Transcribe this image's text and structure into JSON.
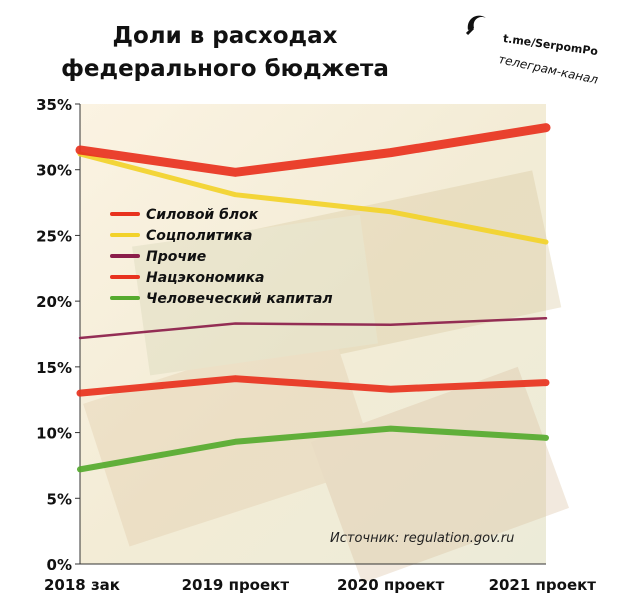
{
  "title_lines": [
    "Доли в расходах",
    "федерального бюджета"
  ],
  "brand": {
    "handle": "t.me/SerpomPo",
    "subtitle": "телеграм-канал"
  },
  "source_note": "Источник: regulation.gov.ru",
  "chart_data": {
    "type": "line",
    "categories": [
      "2018 зак",
      "2019 проект",
      "2020 проект",
      "2021 проект"
    ],
    "ylim": [
      0,
      35
    ],
    "yticks": [
      "0%",
      "5%",
      "10%",
      "15%",
      "20%",
      "25%",
      "30%",
      "35%"
    ],
    "ytick_values": [
      0,
      5,
      10,
      15,
      20,
      25,
      30,
      35
    ],
    "grid": false,
    "legend_position": "upper-left",
    "series": [
      {
        "name": "Силовой блок",
        "color": "#e8321e",
        "values": [
          13.0,
          14.1,
          13.3,
          13.8
        ],
        "width": 7
      },
      {
        "name": "Соцполитика",
        "color": "#f2d22a",
        "values": [
          31.2,
          28.1,
          26.8,
          24.5
        ],
        "width": 5
      },
      {
        "name": "Прочие",
        "color": "#8b1d4a",
        "values": [
          17.2,
          18.3,
          18.2,
          18.7
        ],
        "width": 2.5
      },
      {
        "name": "Нацэкономика",
        "color": "#e8321e",
        "values": [
          31.5,
          29.8,
          31.3,
          33.2
        ],
        "width": 9
      },
      {
        "name": "Человеческий капитал",
        "color": "#55aa2e",
        "values": [
          7.2,
          9.3,
          10.3,
          9.6
        ],
        "width": 6
      }
    ]
  }
}
